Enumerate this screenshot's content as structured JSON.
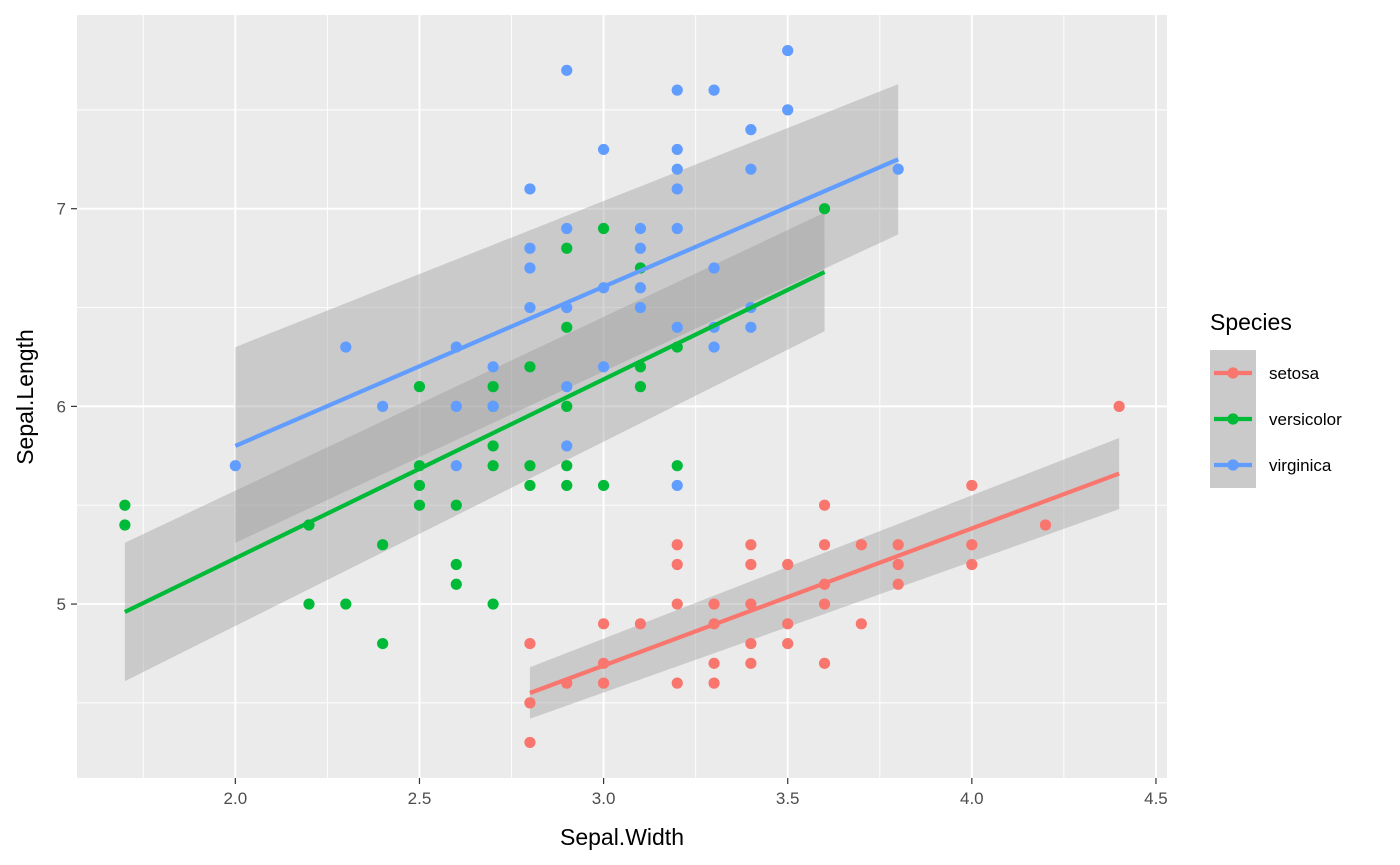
{
  "chart_data": {
    "type": "scatter",
    "xlabel": "Sepal.Width",
    "ylabel": "Sepal.Length",
    "xlim": [
      1.57,
      4.53
    ],
    "ylim": [
      4.12,
      7.98
    ],
    "x_ticks": [
      2.0,
      2.5,
      3.0,
      3.5,
      4.0,
      4.5
    ],
    "x_tick_labels": [
      "2.0",
      "2.5",
      "3.0",
      "3.5",
      "4.0",
      "4.5"
    ],
    "y_ticks": [
      5,
      6,
      7
    ],
    "y_tick_labels": [
      "5",
      "6",
      "7"
    ],
    "grid": true,
    "legend": {
      "title": "Species",
      "position": "right"
    },
    "series": [
      {
        "name": "setosa",
        "color": "#F8766D",
        "points": [
          [
            2.8,
            4.8
          ],
          [
            2.8,
            4.5
          ],
          [
            2.8,
            4.3
          ],
          [
            2.9,
            4.6
          ],
          [
            3.0,
            4.9
          ],
          [
            3.0,
            4.7
          ],
          [
            3.0,
            4.6
          ],
          [
            3.1,
            4.9
          ],
          [
            3.2,
            5.3
          ],
          [
            3.2,
            5.2
          ],
          [
            3.2,
            5.0
          ],
          [
            3.2,
            4.6
          ],
          [
            3.3,
            5.0
          ],
          [
            3.3,
            4.9
          ],
          [
            3.3,
            4.7
          ],
          [
            3.3,
            4.6
          ],
          [
            3.4,
            5.3
          ],
          [
            3.4,
            5.0
          ],
          [
            3.4,
            4.8
          ],
          [
            3.4,
            4.7
          ],
          [
            3.4,
            5.2
          ],
          [
            3.5,
            5.2
          ],
          [
            3.5,
            4.9
          ],
          [
            3.5,
            4.8
          ],
          [
            3.6,
            5.5
          ],
          [
            3.6,
            5.3
          ],
          [
            3.6,
            5.1
          ],
          [
            3.6,
            5.0
          ],
          [
            3.6,
            4.7
          ],
          [
            3.7,
            5.3
          ],
          [
            3.7,
            4.9
          ],
          [
            3.8,
            5.3
          ],
          [
            3.8,
            5.2
          ],
          [
            3.8,
            5.1
          ],
          [
            4.0,
            5.6
          ],
          [
            4.0,
            5.3
          ],
          [
            4.0,
            5.2
          ],
          [
            4.2,
            5.4
          ],
          [
            4.4,
            6.0
          ]
        ],
        "fit": {
          "x": [
            2.8,
            4.4
          ],
          "y": [
            4.55,
            5.66
          ],
          "ci_lower": [
            4.42,
            5.48
          ],
          "ci_upper": [
            4.68,
            5.84
          ]
        }
      },
      {
        "name": "versicolor",
        "color": "#00BA38",
        "points": [
          [
            1.7,
            5.5
          ],
          [
            1.7,
            5.4
          ],
          [
            2.2,
            5.4
          ],
          [
            2.2,
            5.0
          ],
          [
            2.3,
            5.0
          ],
          [
            2.4,
            5.3
          ],
          [
            2.4,
            4.8
          ],
          [
            2.5,
            6.1
          ],
          [
            2.5,
            5.7
          ],
          [
            2.5,
            5.6
          ],
          [
            2.5,
            5.5
          ],
          [
            2.6,
            5.5
          ],
          [
            2.6,
            5.2
          ],
          [
            2.6,
            5.1
          ],
          [
            2.7,
            6.1
          ],
          [
            2.7,
            6.0
          ],
          [
            2.7,
            5.8
          ],
          [
            2.7,
            5.7
          ],
          [
            2.7,
            5.0
          ],
          [
            2.8,
            6.2
          ],
          [
            2.8,
            5.7
          ],
          [
            2.8,
            5.6
          ],
          [
            2.9,
            6.8
          ],
          [
            2.9,
            6.4
          ],
          [
            2.9,
            6.0
          ],
          [
            2.9,
            5.7
          ],
          [
            2.9,
            5.6
          ],
          [
            3.0,
            6.9
          ],
          [
            3.0,
            5.6
          ],
          [
            3.1,
            6.7
          ],
          [
            3.1,
            6.2
          ],
          [
            3.1,
            6.1
          ],
          [
            3.2,
            6.3
          ],
          [
            3.2,
            5.7
          ],
          [
            3.6,
            7.0
          ]
        ],
        "fit": {
          "x": [
            1.7,
            3.6
          ],
          "y": [
            4.96,
            6.68
          ],
          "ci_lower": [
            4.61,
            6.38
          ],
          "ci_upper": [
            5.31,
            6.98
          ]
        }
      },
      {
        "name": "virginica",
        "color": "#619CFF",
        "points": [
          [
            2.0,
            5.7
          ],
          [
            2.3,
            6.3
          ],
          [
            2.4,
            6.0
          ],
          [
            2.6,
            6.3
          ],
          [
            2.6,
            6.0
          ],
          [
            2.6,
            5.7
          ],
          [
            2.7,
            6.2
          ],
          [
            2.7,
            6.0
          ],
          [
            2.8,
            7.1
          ],
          [
            2.8,
            6.8
          ],
          [
            2.8,
            6.7
          ],
          [
            2.8,
            6.5
          ],
          [
            2.9,
            7.7
          ],
          [
            2.9,
            6.9
          ],
          [
            2.9,
            6.5
          ],
          [
            2.9,
            6.1
          ],
          [
            2.9,
            5.8
          ],
          [
            3.0,
            7.3
          ],
          [
            3.0,
            6.6
          ],
          [
            3.0,
            6.2
          ],
          [
            3.1,
            6.9
          ],
          [
            3.1,
            6.8
          ],
          [
            3.1,
            6.6
          ],
          [
            3.1,
            6.5
          ],
          [
            3.2,
            7.6
          ],
          [
            3.2,
            7.3
          ],
          [
            3.2,
            7.2
          ],
          [
            3.2,
            7.1
          ],
          [
            3.2,
            6.9
          ],
          [
            3.2,
            6.4
          ],
          [
            3.2,
            5.6
          ],
          [
            3.3,
            7.6
          ],
          [
            3.3,
            6.7
          ],
          [
            3.3,
            6.4
          ],
          [
            3.3,
            6.3
          ],
          [
            3.4,
            7.4
          ],
          [
            3.4,
            7.2
          ],
          [
            3.4,
            6.5
          ],
          [
            3.4,
            6.4
          ],
          [
            3.5,
            7.8
          ],
          [
            3.5,
            7.5
          ],
          [
            3.8,
            7.2
          ]
        ],
        "fit": {
          "x": [
            2.0,
            3.8
          ],
          "y": [
            5.8,
            7.25
          ],
          "ci_lower": [
            5.31,
            6.87
          ],
          "ci_upper": [
            6.3,
            7.63
          ]
        }
      }
    ]
  }
}
